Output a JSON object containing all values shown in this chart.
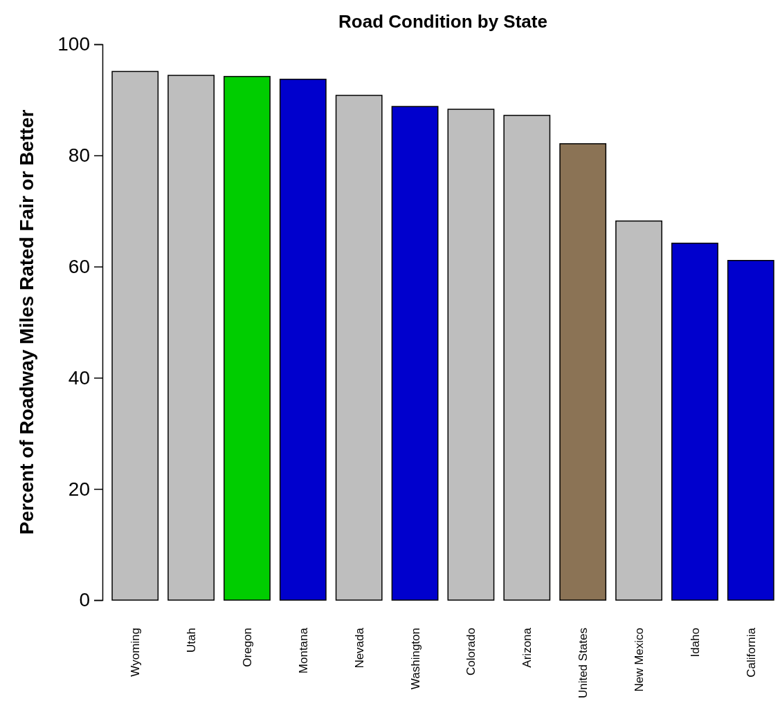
{
  "chart_data": {
    "type": "bar",
    "title": "Road Condition by State",
    "ylabel": "Percent of Roadway Miles Rated Fair or Better",
    "categories": [
      "Wyoming",
      "Utah",
      "Oregon",
      "Montana",
      "Nevada",
      "Washington",
      "Colorado",
      "Arizona",
      "United States",
      "New Mexico",
      "Idaho",
      "California"
    ],
    "values": [
      95.1,
      94.4,
      94.2,
      93.7,
      90.8,
      88.8,
      88.3,
      87.2,
      82.1,
      68.2,
      64.2,
      61.1
    ],
    "colors": [
      "#bebebe",
      "#bebebe",
      "#00cd00",
      "#0000cd",
      "#bebebe",
      "#0000cd",
      "#bebebe",
      "#bebebe",
      "#8b7355",
      "#bebebe",
      "#0000cd",
      "#0000cd"
    ],
    "ylim": [
      0,
      100
    ],
    "yticks": [
      0,
      20,
      40,
      60,
      80,
      100
    ],
    "grid": false
  }
}
